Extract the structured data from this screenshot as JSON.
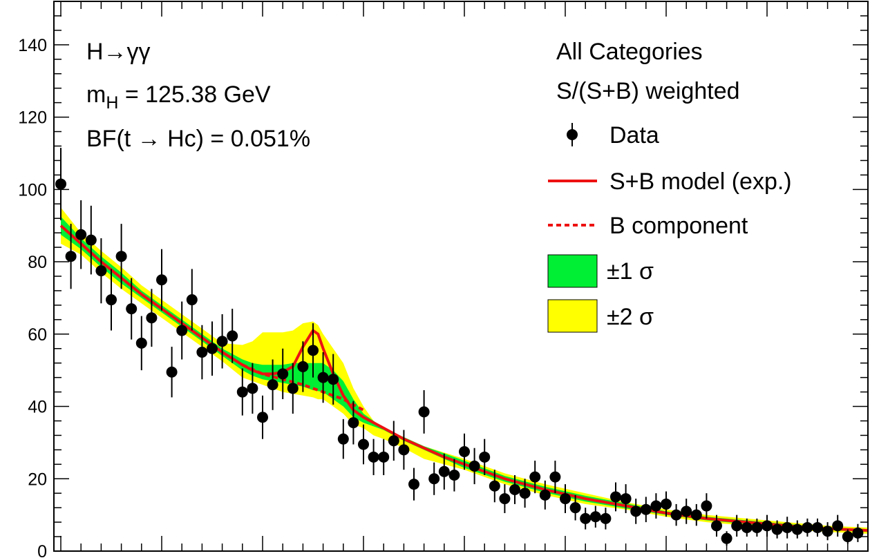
{
  "chart_data": {
    "type": "scatter",
    "ylim": [
      0,
      152
    ],
    "yticks": [
      0,
      20,
      40,
      60,
      80,
      100,
      120,
      140
    ],
    "xlim": [
      0,
      80
    ],
    "xlabel": "",
    "ylabel": "",
    "annotations": {
      "process": "H→γγ",
      "mass_prefix": "m",
      "mass_sub": "H",
      "mass_value": " = 125.38 GeV",
      "bf": "BF(t → Hc) = 0.051%"
    },
    "legend": {
      "title1": "All Categories",
      "title2": "S/(S+B) weighted",
      "placement": "top-right",
      "entries": {
        "data": "Data",
        "sb": "S+B model (exp.)",
        "b": "B component",
        "band1": "±1 σ",
        "band2": "±2 σ"
      }
    },
    "colors": {
      "model": "#ee1111",
      "band1": "#00ee33",
      "band2": "#ffff00",
      "data": "#000000"
    },
    "series": [
      {
        "name": "Data",
        "x": [
          0,
          1,
          2,
          3,
          4,
          5,
          6,
          7,
          8,
          9,
          10,
          11,
          12,
          13,
          14,
          15,
          16,
          17,
          18,
          19,
          20,
          21,
          22,
          23,
          24,
          25,
          26,
          27,
          28,
          29,
          30,
          31,
          32,
          33,
          34,
          35,
          36,
          37,
          38,
          39,
          40,
          41,
          42,
          43,
          44,
          45,
          46,
          47,
          48,
          49,
          50,
          51,
          52,
          53,
          54,
          55,
          56,
          57,
          58,
          59,
          60,
          61,
          62,
          63,
          64,
          65,
          66,
          67,
          68,
          69,
          70,
          71,
          72,
          73,
          74,
          75,
          76,
          77,
          78,
          79
        ],
        "y": [
          101.5,
          81.5,
          87.5,
          86,
          77.5,
          69.5,
          81.5,
          67,
          57.5,
          64.5,
          75,
          49.5,
          61,
          69.5,
          55,
          56,
          58,
          59.5,
          44,
          45,
          37,
          46,
          49,
          45,
          51,
          55.5,
          48,
          47.5,
          31,
          35.5,
          29.5,
          26,
          26,
          30.5,
          28,
          18.5,
          38.5,
          20,
          22,
          21,
          27.5,
          23.5,
          26,
          18,
          14.5,
          17,
          16,
          20.5,
          15.5,
          20.5,
          14.5,
          12,
          9,
          9.5,
          9,
          15,
          14.5,
          11,
          11.5,
          12.5,
          13,
          10,
          11,
          10,
          12.5,
          7,
          3.5,
          7,
          6.5,
          6.5,
          7,
          6,
          6.5,
          6,
          6.5,
          6.5,
          5.5,
          7,
          4,
          5
        ],
        "err": [
          10,
          9,
          9.5,
          9.5,
          9,
          8.5,
          9,
          8.5,
          7.5,
          8,
          8.5,
          7,
          8,
          8.5,
          7.5,
          7.5,
          7.5,
          7.5,
          6.5,
          7,
          6,
          7,
          7,
          7,
          7,
          7.5,
          7,
          7,
          5.5,
          6,
          5.5,
          5,
          5,
          5.5,
          5.5,
          4.5,
          6,
          4.5,
          5,
          4.5,
          5,
          5,
          5,
          4.5,
          4,
          4,
          4,
          4.5,
          4,
          4.5,
          4,
          3.5,
          3,
          3,
          3,
          4,
          4,
          3.5,
          3.5,
          3.5,
          3.5,
          3,
          3.5,
          3,
          3.5,
          3,
          2,
          3,
          2.5,
          2.5,
          3,
          2.5,
          3,
          2.5,
          2.5,
          2.5,
          2.5,
          3,
          2,
          2.5
        ]
      },
      {
        "name": "S+B model (exp.)",
        "x": [
          0,
          2,
          4,
          6,
          8,
          10,
          12,
          14,
          16,
          18,
          19,
          20,
          21,
          22,
          23,
          24,
          25,
          25.5,
          26,
          27,
          28,
          29,
          30,
          32,
          34,
          36,
          38,
          40,
          44,
          48,
          52,
          56,
          60,
          64,
          68,
          72,
          76,
          80
        ],
        "y": [
          90,
          85,
          80,
          75.5,
          71,
          67,
          63,
          59,
          55,
          51.5,
          50,
          49,
          49,
          49.5,
          51,
          56.5,
          61,
          60,
          56,
          49,
          43,
          39,
          37,
          34,
          31,
          28.5,
          26,
          24,
          20,
          17,
          14.5,
          12.5,
          10.5,
          9,
          8,
          7,
          6.2,
          5.7
        ]
      },
      {
        "name": "B component",
        "x": [
          18,
          20,
          22,
          24,
          26,
          28,
          30
        ],
        "y": [
          51.5,
          49,
          47.5,
          46,
          44,
          42,
          39
        ]
      },
      {
        "name": "±2 σ",
        "x": [
          0,
          2,
          4,
          6,
          8,
          10,
          12,
          14,
          16,
          18,
          19,
          20,
          21,
          22,
          23,
          24,
          25,
          25.5,
          26,
          27,
          28,
          29,
          30,
          31,
          32,
          34,
          36,
          40,
          44,
          48,
          52,
          56,
          60,
          64,
          68,
          72,
          76,
          80
        ],
        "upper": [
          95,
          88,
          83,
          78.5,
          73.5,
          69.5,
          65.5,
          61.5,
          57.5,
          57,
          58,
          60.5,
          60.5,
          60.5,
          61,
          63,
          63.5,
          62.5,
          60,
          56,
          52,
          45,
          40,
          36,
          34,
          31.5,
          29,
          25.5,
          21.5,
          18.5,
          16,
          13.5,
          11.5,
          10,
          9,
          8,
          7,
          6.5
        ],
        "lower": [
          85,
          82,
          77,
          72.5,
          68.5,
          64.5,
          60.5,
          56.5,
          52.5,
          48,
          47,
          46,
          45,
          44,
          43.5,
          43,
          42.5,
          42,
          42,
          40,
          38,
          35,
          34,
          32,
          31,
          28.5,
          25.5,
          22.5,
          18.5,
          15.5,
          13,
          11.5,
          9.5,
          8,
          7,
          6,
          5.3,
          4.8
        ]
      },
      {
        "name": "±1 σ",
        "x": [
          0,
          2,
          4,
          6,
          8,
          10,
          12,
          14,
          16,
          18,
          19,
          20,
          21,
          22,
          23,
          24,
          25,
          26,
          27,
          28,
          29,
          30,
          32,
          34,
          36,
          40,
          44,
          48,
          52,
          56,
          60,
          64,
          68,
          72,
          76,
          80
        ],
        "upper": [
          92.5,
          86.5,
          81.5,
          77,
          72,
          68,
          64,
          60,
          56,
          53,
          52,
          51.5,
          51.5,
          51.5,
          52,
          52,
          52,
          52,
          50,
          47,
          42,
          38,
          34,
          31.5,
          29,
          25,
          20.8,
          17.8,
          15.3,
          13.2,
          11,
          9.5,
          8.5,
          7.5,
          6.6,
          6.1
        ],
        "lower": [
          87.5,
          83.5,
          78.5,
          74,
          70,
          66,
          62,
          58,
          54,
          50,
          48.5,
          47.5,
          47,
          46.5,
          46,
          45.5,
          44.5,
          44,
          42,
          40,
          37,
          35.5,
          33.5,
          30.5,
          28,
          23,
          19.2,
          16.2,
          13.7,
          11.8,
          10,
          8.5,
          7.5,
          6.5,
          5.8,
          5.3
        ]
      }
    ]
  }
}
